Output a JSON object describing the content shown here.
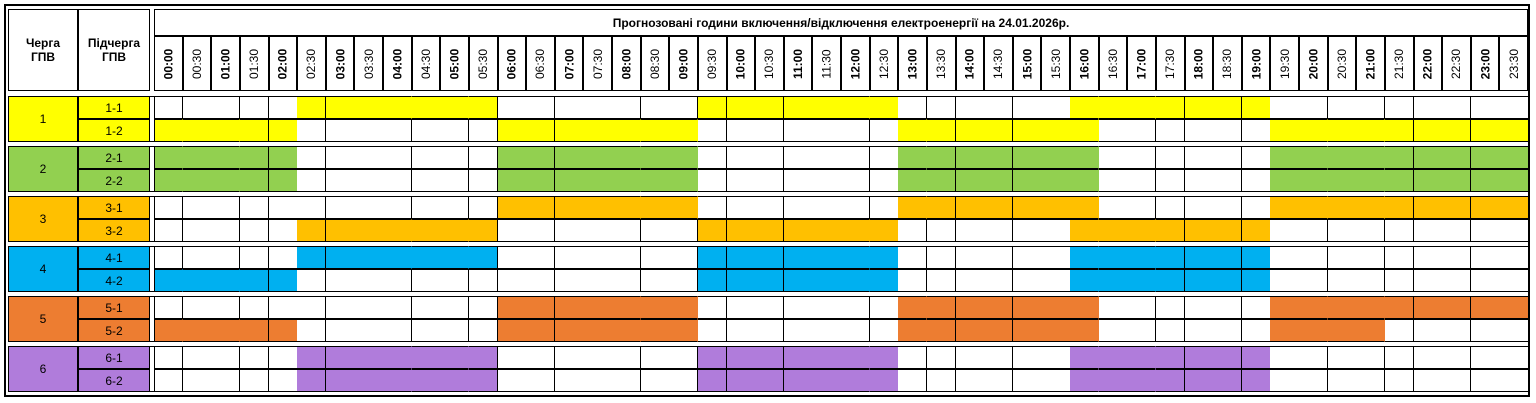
{
  "header": {
    "queue_label": "Черга ГПВ",
    "subqueue_label": "Підчерга ГПВ",
    "title": "Прогнозовані години включення/відключення електроенергії на 24.01.2026р."
  },
  "slots": [
    "00:00",
    "00:30",
    "01:00",
    "01:30",
    "02:00",
    "02:30",
    "03:00",
    "03:30",
    "04:00",
    "04:30",
    "05:00",
    "05:30",
    "06:00",
    "06:30",
    "07:00",
    "07:30",
    "08:00",
    "08:30",
    "09:00",
    "09:30",
    "10:00",
    "10:30",
    "11:00",
    "11:30",
    "12:00",
    "12:30",
    "13:00",
    "13:30",
    "14:00",
    "14:30",
    "15:00",
    "15:30",
    "16:00",
    "16:30",
    "17:00",
    "17:30",
    "18:00",
    "18:30",
    "19:00",
    "19:30",
    "20:00",
    "20:30",
    "21:00",
    "21:30",
    "22:00",
    "22:30",
    "23:00",
    "23:30"
  ],
  "groups": [
    {
      "label": "1",
      "color": "#ffff00",
      "subs": [
        {
          "label": "1-1",
          "pattern": "000001111111000000011111110000001111111000000000"
        },
        {
          "label": "1-2",
          "pattern": "111110000000111111100000001111111000000111111111"
        }
      ]
    },
    {
      "label": "2",
      "color": "#92d050",
      "subs": [
        {
          "label": "2-1",
          "pattern": "111110000000111111100000001111111000000111111111"
        },
        {
          "label": "2-2",
          "pattern": "111110000000111111100000001111111000000111111111"
        }
      ]
    },
    {
      "label": "3",
      "color": "#ffc000",
      "subs": [
        {
          "label": "3-1",
          "pattern": "000000000000111111100000001111111000000111111111"
        },
        {
          "label": "3-2",
          "pattern": "000001111111000000011111110000001111111000000000"
        }
      ]
    },
    {
      "label": "4",
      "color": "#00b0f0",
      "subs": [
        {
          "label": "4-1",
          "pattern": "000001111111000000011111110000001111111000000000"
        },
        {
          "label": "4-2",
          "pattern": "111110000000000000011111110000001111111000000000"
        }
      ]
    },
    {
      "label": "5",
      "color": "#ed7d31",
      "subs": [
        {
          "label": "5-1",
          "pattern": "000000000000111111100000001111111000000111111111"
        },
        {
          "label": "5-2",
          "pattern": "111110000000111111100000001111111000000111100000"
        }
      ]
    },
    {
      "label": "6",
      "color": "#b07cdb",
      "subs": [
        {
          "label": "6-1",
          "pattern": "000001111111000000011111110000001111111000000000"
        },
        {
          "label": "6-2",
          "pattern": "000001111111000000011111110000001111111000000000"
        }
      ]
    }
  ]
}
